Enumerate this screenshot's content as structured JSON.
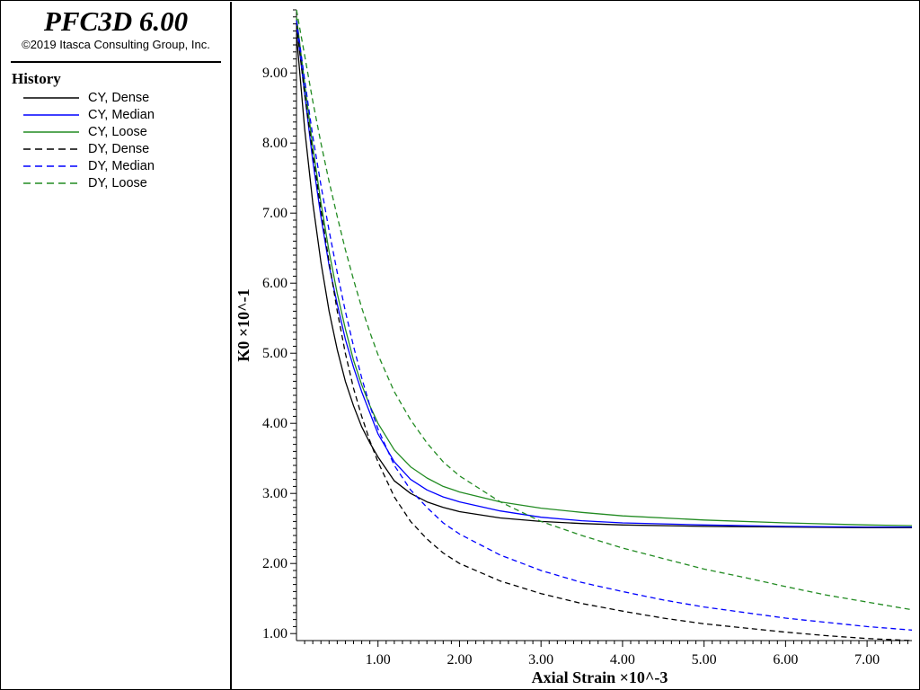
{
  "header": {
    "app_title": "PFC3D 6.00",
    "copyright": "©2019 Itasca Consulting Group, Inc."
  },
  "legend": {
    "title": "History"
  },
  "chart_data": {
    "type": "line",
    "xlabel": "Axial Strain ×10^-3",
    "ylabel": "K0 ×10^-1",
    "xlim": [
      0.0,
      7.55
    ],
    "ylim": [
      0.9,
      9.9
    ],
    "xticks": [
      "1.00",
      "2.00",
      "3.00",
      "4.00",
      "5.00",
      "6.00",
      "7.00"
    ],
    "yticks": [
      "1.00",
      "2.00",
      "3.00",
      "4.00",
      "5.00",
      "6.00",
      "7.00",
      "8.00",
      "9.00"
    ],
    "grid": false,
    "legend_position": "left-panel",
    "series": [
      {
        "name": "CY, Dense",
        "color": "#000000",
        "dash": "solid",
        "x": [
          0.0,
          0.1,
          0.2,
          0.3,
          0.4,
          0.5,
          0.6,
          0.7,
          0.8,
          0.9,
          1.0,
          1.2,
          1.4,
          1.6,
          1.8,
          2.0,
          2.5,
          3.0,
          3.5,
          4.0,
          5.0,
          6.0,
          7.0,
          7.55
        ],
        "y": [
          9.55,
          8.2,
          7.15,
          6.3,
          5.6,
          5.05,
          4.6,
          4.25,
          3.95,
          3.72,
          3.52,
          3.18,
          3.0,
          2.88,
          2.8,
          2.74,
          2.65,
          2.6,
          2.57,
          2.55,
          2.53,
          2.52,
          2.51,
          2.51
        ]
      },
      {
        "name": "CY, Median",
        "color": "#0000ff",
        "dash": "solid",
        "x": [
          0.0,
          0.1,
          0.2,
          0.3,
          0.4,
          0.5,
          0.6,
          0.7,
          0.8,
          0.9,
          1.0,
          1.2,
          1.4,
          1.6,
          1.8,
          2.0,
          2.5,
          3.0,
          3.5,
          4.0,
          5.0,
          6.0,
          7.0,
          7.55
        ],
        "y": [
          9.7,
          8.7,
          7.75,
          6.95,
          6.25,
          5.7,
          5.2,
          4.8,
          4.45,
          4.15,
          3.85,
          3.45,
          3.2,
          3.05,
          2.95,
          2.88,
          2.75,
          2.66,
          2.61,
          2.58,
          2.55,
          2.53,
          2.52,
          2.52
        ]
      },
      {
        "name": "CY, Loose",
        "color": "#228b22",
        "dash": "solid",
        "x": [
          0.0,
          0.1,
          0.2,
          0.3,
          0.4,
          0.5,
          0.6,
          0.7,
          0.8,
          0.9,
          1.0,
          1.2,
          1.4,
          1.6,
          1.8,
          2.0,
          2.5,
          3.0,
          3.5,
          4.0,
          5.0,
          6.0,
          7.0,
          7.55
        ],
        "y": [
          9.8,
          8.85,
          7.95,
          7.15,
          6.45,
          5.85,
          5.35,
          4.9,
          4.55,
          4.25,
          4.0,
          3.62,
          3.38,
          3.22,
          3.1,
          3.02,
          2.88,
          2.79,
          2.73,
          2.68,
          2.62,
          2.58,
          2.55,
          2.54
        ]
      },
      {
        "name": "DY, Dense",
        "color": "#000000",
        "dash": "dashed",
        "x": [
          0.0,
          0.1,
          0.2,
          0.3,
          0.4,
          0.5,
          0.6,
          0.7,
          0.8,
          0.9,
          1.0,
          1.2,
          1.4,
          1.6,
          1.8,
          2.0,
          2.5,
          3.0,
          3.5,
          4.0,
          4.5,
          5.0,
          5.5,
          6.0,
          6.5,
          7.0,
          7.55
        ],
        "y": [
          9.7,
          8.7,
          7.85,
          7.05,
          6.3,
          5.6,
          5.0,
          4.5,
          4.1,
          3.75,
          3.45,
          2.95,
          2.6,
          2.35,
          2.15,
          2.0,
          1.75,
          1.57,
          1.43,
          1.32,
          1.22,
          1.14,
          1.08,
          1.02,
          0.97,
          0.93,
          0.9
        ]
      },
      {
        "name": "DY, Median",
        "color": "#0000ff",
        "dash": "dashed",
        "x": [
          0.0,
          0.1,
          0.2,
          0.3,
          0.4,
          0.5,
          0.6,
          0.7,
          0.8,
          0.9,
          1.0,
          1.2,
          1.4,
          1.6,
          1.8,
          2.0,
          2.5,
          3.0,
          3.5,
          4.0,
          4.5,
          5.0,
          5.5,
          6.0,
          6.5,
          7.0,
          7.55
        ],
        "y": [
          9.75,
          8.9,
          8.1,
          7.4,
          6.75,
          6.15,
          5.6,
          5.1,
          4.65,
          4.25,
          3.92,
          3.4,
          3.05,
          2.8,
          2.58,
          2.42,
          2.12,
          1.9,
          1.73,
          1.6,
          1.48,
          1.38,
          1.3,
          1.22,
          1.16,
          1.1,
          1.05
        ]
      },
      {
        "name": "DY, Loose",
        "color": "#228b22",
        "dash": "dashed",
        "x": [
          0.0,
          0.1,
          0.2,
          0.3,
          0.4,
          0.5,
          0.6,
          0.7,
          0.8,
          0.9,
          1.0,
          1.2,
          1.4,
          1.6,
          1.8,
          2.0,
          2.5,
          3.0,
          3.5,
          4.0,
          4.5,
          5.0,
          5.5,
          6.0,
          6.5,
          7.0,
          7.55
        ],
        "y": [
          9.9,
          9.25,
          8.6,
          8.0,
          7.45,
          6.95,
          6.48,
          6.05,
          5.65,
          5.3,
          4.98,
          4.45,
          4.05,
          3.72,
          3.45,
          3.25,
          2.88,
          2.6,
          2.4,
          2.22,
          2.07,
          1.92,
          1.8,
          1.67,
          1.55,
          1.45,
          1.34
        ]
      }
    ]
  }
}
